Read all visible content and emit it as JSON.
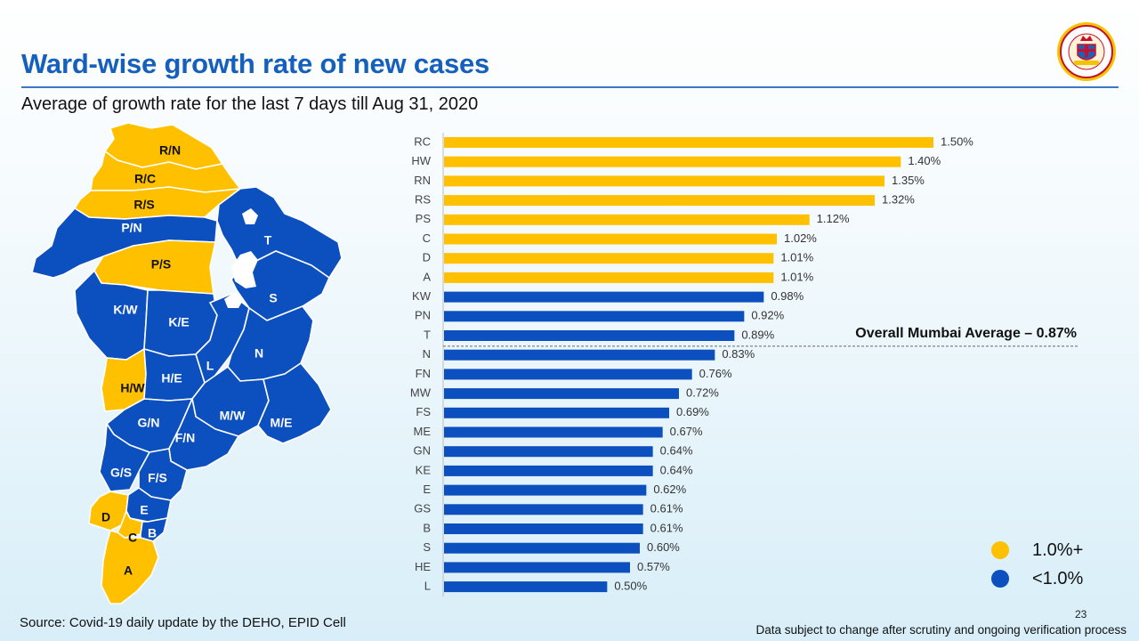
{
  "header": {
    "title": "Ward-wise growth rate of new cases",
    "subtitle": "Average of growth rate for the last 7 days till Aug 31, 2020"
  },
  "logo": {
    "icon": "municipal-corporation-seal-icon",
    "text": "Municipal Corporation of Greater Mumbai"
  },
  "colors": {
    "high": "#ffc000",
    "low": "#0c4fbf",
    "title": "#1560bd"
  },
  "map": {
    "labels": [
      "R/N",
      "R/C",
      "R/S",
      "P/N",
      "T",
      "P/S",
      "S",
      "K/W",
      "K/E",
      "L",
      "N",
      "H/W",
      "H/E",
      "G/N",
      "M/W",
      "M/E",
      "F/N",
      "G/S",
      "F/S",
      "D",
      "E",
      "C",
      "B",
      "A"
    ]
  },
  "chart_data": {
    "type": "bar",
    "orientation": "horizontal",
    "categories": [
      "RC",
      "HW",
      "RN",
      "RS",
      "PS",
      "C",
      "D",
      "A",
      "KW",
      "PN",
      "T",
      "N",
      "FN",
      "MW",
      "FS",
      "ME",
      "GN",
      "KE",
      "E",
      "GS",
      "B",
      "S",
      "HE",
      "L"
    ],
    "values": [
      1.5,
      1.4,
      1.35,
      1.32,
      1.12,
      1.02,
      1.01,
      1.01,
      0.98,
      0.92,
      0.89,
      0.83,
      0.76,
      0.72,
      0.69,
      0.67,
      0.64,
      0.64,
      0.62,
      0.61,
      0.61,
      0.6,
      0.57,
      0.5
    ],
    "value_labels": [
      "1.50%",
      "1.40%",
      "1.35%",
      "1.32%",
      "1.12%",
      "1.02%",
      "1.01%",
      "1.01%",
      "0.98%",
      "0.92%",
      "0.89%",
      "0.83%",
      "0.76%",
      "0.72%",
      "0.69%",
      "0.67%",
      "0.64%",
      "0.64%",
      "0.62%",
      "0.61%",
      "0.61%",
      "0.60%",
      "0.57%",
      "0.50%"
    ],
    "threshold": 1.0,
    "reference_line": {
      "value": 0.87,
      "label": "Overall Mumbai Average – 0.87%"
    },
    "xlim": [
      0,
      1.5
    ],
    "legend": [
      {
        "label": "1.0%+",
        "color": "#ffc000"
      },
      {
        "label": "<1.0%",
        "color": "#0c4fbf"
      }
    ]
  },
  "footer": {
    "source": "Source: Covid-19 daily update by the DEHO, EPID Cell",
    "page_number": "23",
    "disclaimer": "Data subject to change after scrutiny and ongoing verification process"
  }
}
